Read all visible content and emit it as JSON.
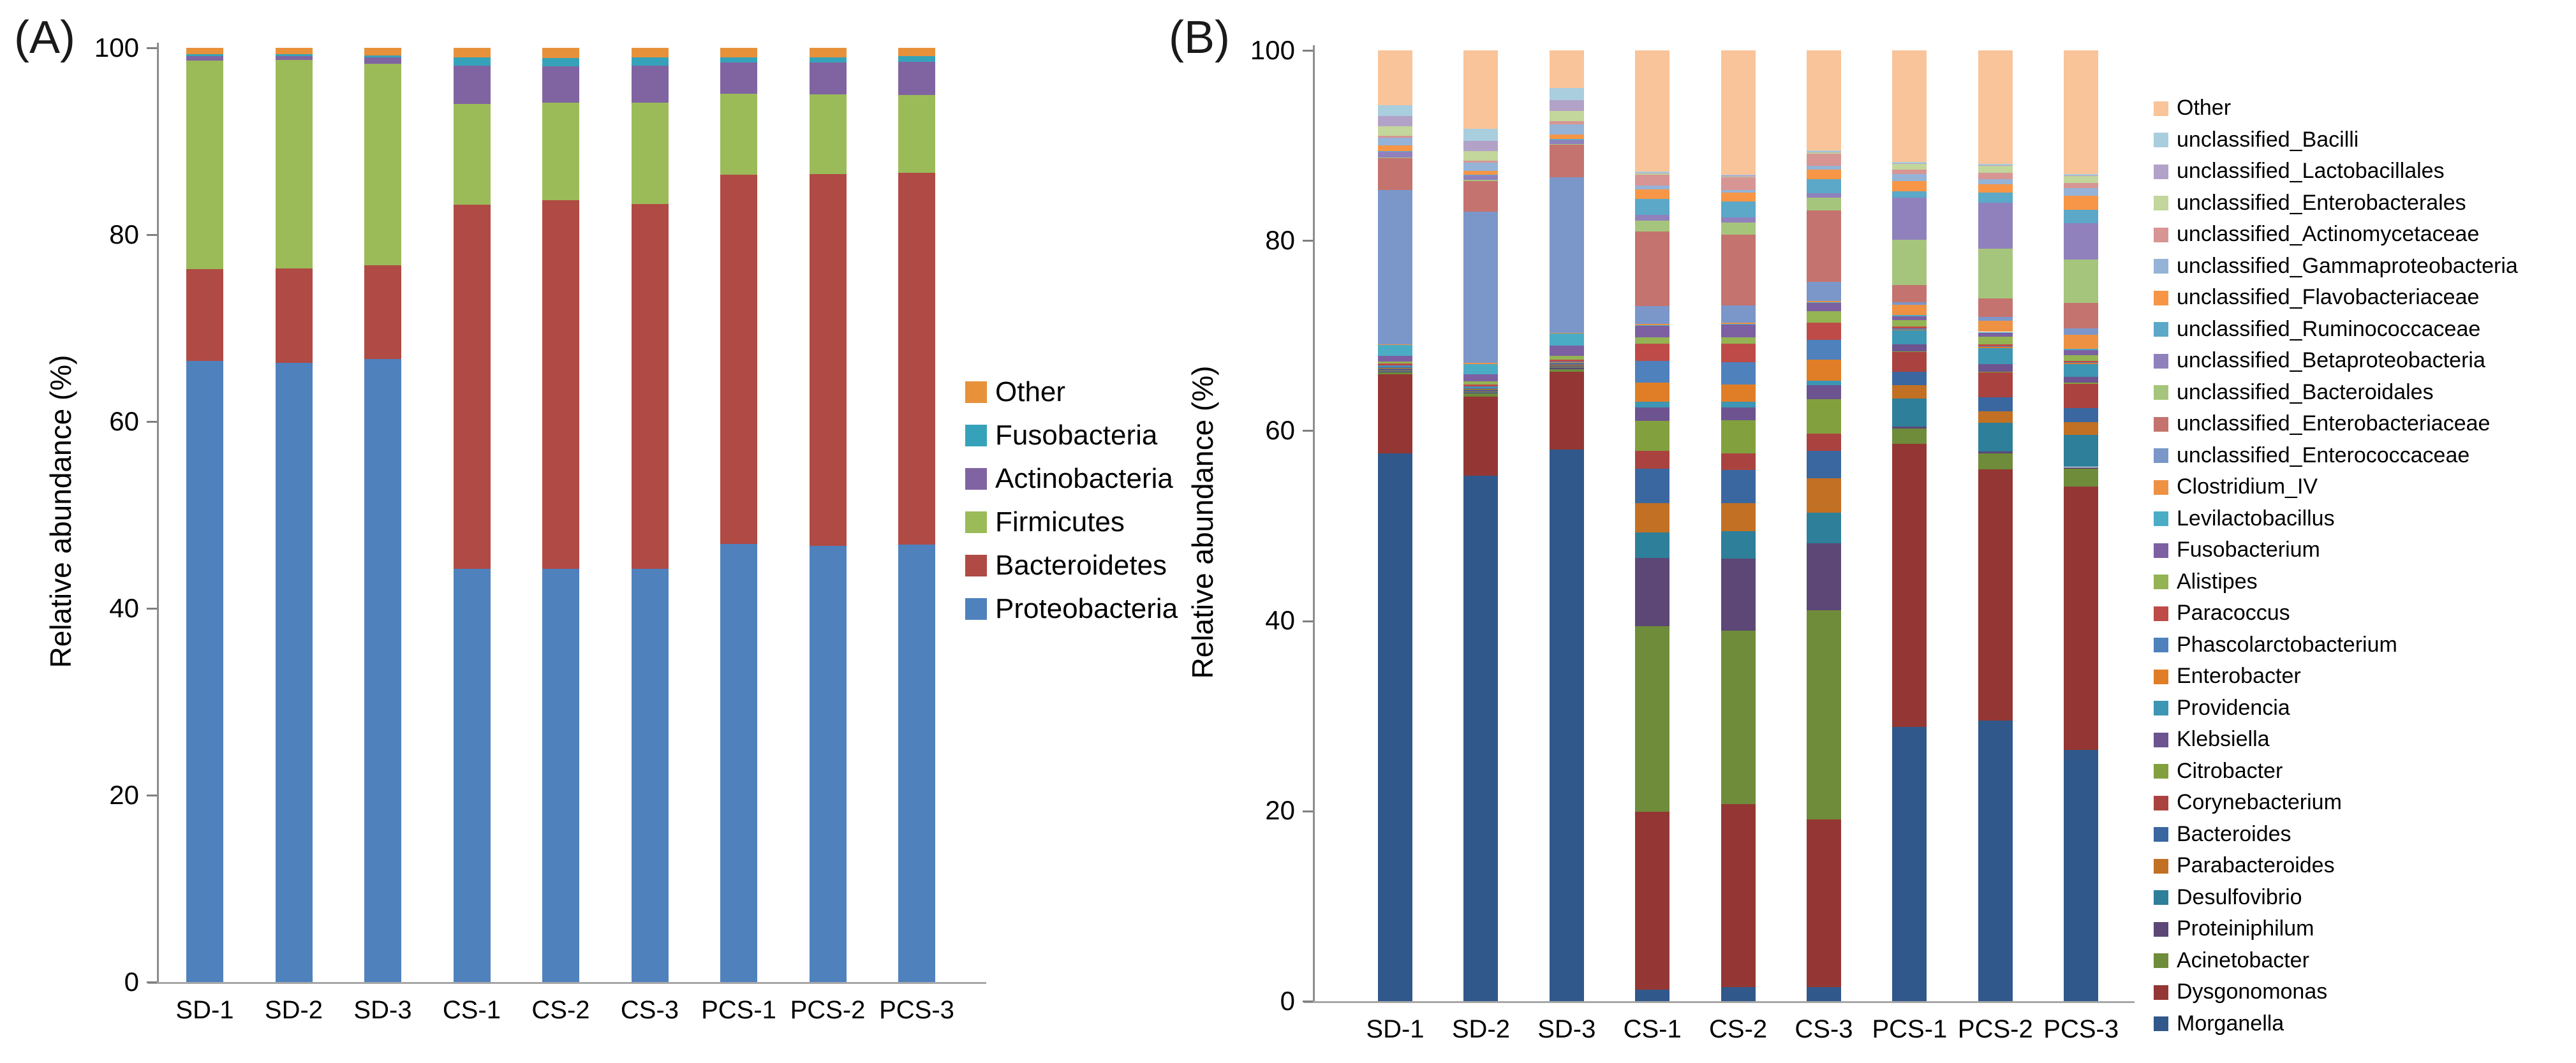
{
  "figure": {
    "panel_a_label": "(A)",
    "panel_b_label": "(B)",
    "y_axis_title": "Relative abundance (%)"
  },
  "chart_data": [
    {
      "type": "bar",
      "stacked": true,
      "panel_label": "(A)",
      "title": "",
      "xlabel": "",
      "ylabel": "Relative abundance (%)",
      "ylim": [
        0,
        100
      ],
      "yticks": [
        0,
        20,
        40,
        60,
        80,
        100
      ],
      "grid": false,
      "legend_position": "right",
      "legend_note": "legend lists top-of-stack series first",
      "categories": [
        "SD-1",
        "SD-2",
        "SD-3",
        "CS-1",
        "CS-2",
        "CS-3",
        "PCS-1",
        "PCS-2",
        "PCS-3"
      ],
      "series": [
        {
          "name": "Other",
          "color": "#E8913B",
          "values": [
            0.7,
            0.7,
            0.8,
            1.0,
            1.1,
            1.0,
            1.0,
            1.0,
            0.9
          ]
        },
        {
          "name": "Fusobacteria",
          "color": "#36A2BA",
          "values": [
            0.2,
            0.2,
            0.2,
            0.9,
            0.9,
            0.9,
            0.6,
            0.6,
            0.6
          ]
        },
        {
          "name": "Actinobacteria",
          "color": "#8064A2",
          "values": [
            0.5,
            0.4,
            0.7,
            4.1,
            3.9,
            4.0,
            3.3,
            3.4,
            3.6
          ]
        },
        {
          "name": "Firmicutes",
          "color": "#9BBB59",
          "values": [
            22.3,
            22.4,
            21.6,
            10.8,
            10.4,
            10.8,
            8.7,
            8.5,
            8.3
          ]
        },
        {
          "name": "Bacteroidetes",
          "color": "#B04A44",
          "values": [
            9.9,
            10.1,
            10.0,
            39.0,
            39.5,
            39.1,
            39.5,
            39.8,
            39.9
          ]
        },
        {
          "name": "Proteobacteria",
          "color": "#4F81BD",
          "values": [
            66.6,
            66.5,
            66.7,
            44.2,
            44.2,
            44.2,
            46.9,
            46.7,
            47.0
          ]
        }
      ]
    },
    {
      "type": "bar",
      "stacked": true,
      "panel_label": "(B)",
      "title": "",
      "xlabel": "",
      "ylabel": "Relative abundance (%)",
      "ylim": [
        0,
        100
      ],
      "yticks": [
        0,
        20,
        40,
        60,
        80,
        100
      ],
      "grid": false,
      "legend_position": "right",
      "legend_note": "legend lists top-of-stack series first",
      "categories": [
        "SD-1",
        "SD-2",
        "SD-3",
        "CS-1",
        "CS-2",
        "CS-3",
        "PCS-1",
        "PCS-2",
        "PCS-3"
      ],
      "series": [
        {
          "name": "Other",
          "color": "#F9C499",
          "values": [
            5.8,
            8.4,
            4.0,
            12.8,
            13.0,
            10.6,
            11.8,
            12.0,
            13.2
          ]
        },
        {
          "name": "unclassified_Bacilli",
          "color": "#A9CEDE",
          "values": [
            1.1,
            1.3,
            1.3,
            0.1,
            0.1,
            0.1,
            0.1,
            0.1,
            0.1
          ]
        },
        {
          "name": "unclassified_Lactobacillales",
          "color": "#B3A2C7",
          "values": [
            1.1,
            1.1,
            1.2,
            0.1,
            0.1,
            0.1,
            0.1,
            0.1,
            0.1
          ]
        },
        {
          "name": "unclassified_Enterobacterales",
          "color": "#C3D69B",
          "values": [
            1.0,
            1.0,
            1.1,
            0.1,
            0.1,
            0.1,
            0.6,
            0.7,
            0.7
          ]
        },
        {
          "name": "unclassified_Actinomycetaceae",
          "color": "#D79594",
          "values": [
            0.2,
            0.2,
            0.3,
            1.2,
            1.3,
            1.3,
            0.5,
            0.7,
            0.6
          ]
        },
        {
          "name": "unclassified_Gammaproteobacteria",
          "color": "#95B3D7",
          "values": [
            0.8,
            0.9,
            1.1,
            0.4,
            0.3,
            0.4,
            0.7,
            0.5,
            0.8
          ]
        },
        {
          "name": "unclassified_Flavobacteriaceae",
          "color": "#F79646",
          "values": [
            0.6,
            0.4,
            0.5,
            1.0,
            0.9,
            1.0,
            1.1,
            0.9,
            1.5
          ]
        },
        {
          "name": "unclassified_Ruminococcaceae",
          "color": "#5BA8C8",
          "values": [
            0.1,
            0.1,
            0.1,
            1.7,
            1.7,
            1.5,
            0.7,
            1.1,
            1.4
          ]
        },
        {
          "name": "unclassified_Betaproteobacteria",
          "color": "#9081BD",
          "values": [
            0.6,
            0.5,
            0.4,
            0.6,
            0.5,
            0.5,
            4.4,
            4.8,
            3.9
          ]
        },
        {
          "name": "unclassified_Bacteroidales",
          "color": "#A6C57C",
          "values": [
            0.1,
            0.1,
            0.1,
            1.1,
            1.3,
            1.3,
            4.8,
            5.3,
            4.6
          ]
        },
        {
          "name": "unclassified_Enterobacteriaceae",
          "color": "#C4736F",
          "values": [
            3.3,
            3.3,
            3.5,
            7.9,
            7.4,
            7.6,
            1.8,
            1.9,
            2.7
          ]
        },
        {
          "name": "unclassified_Enterococcaceae",
          "color": "#7B97C9",
          "values": [
            16.3,
            16.2,
            16.6,
            1.9,
            1.8,
            2.0,
            0.3,
            0.4,
            0.7
          ]
        },
        {
          "name": "Clostridium_IV",
          "color": "#EF9143",
          "values": [
            0.1,
            0.1,
            0.1,
            0.1,
            0.1,
            0.1,
            1.1,
            1.2,
            1.5
          ]
        },
        {
          "name": "Levilactobacillus",
          "color": "#4BACC6",
          "values": [
            1.1,
            1.1,
            1.3,
            0.1,
            0.1,
            0.1,
            0.1,
            0.1,
            0.1
          ]
        },
        {
          "name": "Fusobacterium",
          "color": "#7C60A2",
          "values": [
            0.6,
            0.8,
            1.1,
            1.2,
            1.3,
            0.9,
            0.4,
            0.4,
            0.6
          ]
        },
        {
          "name": "Alistipes",
          "color": "#94B353",
          "values": [
            0.2,
            0.3,
            0.4,
            0.7,
            0.7,
            1.2,
            0.7,
            0.8,
            0.6
          ]
        },
        {
          "name": "Paracoccus",
          "color": "#BE4B48",
          "values": [
            0.2,
            0.2,
            0.2,
            1.8,
            1.9,
            1.8,
            0.2,
            0.2,
            0.1
          ]
        },
        {
          "name": "Phascolarctobacterium",
          "color": "#4F81BD",
          "values": [
            0.05,
            0.05,
            0.05,
            2.3,
            2.4,
            2.1,
            0.1,
            0.1,
            0.1
          ]
        },
        {
          "name": "Enterobacter",
          "color": "#E07E27",
          "values": [
            0.05,
            0.05,
            0.05,
            2.0,
            1.8,
            2.2,
            0.1,
            0.1,
            0.1
          ]
        },
        {
          "name": "Providencia",
          "color": "#3D96B4",
          "values": [
            0.1,
            0.1,
            0.1,
            0.6,
            0.6,
            0.5,
            1.5,
            1.7,
            1.4
          ]
        },
        {
          "name": "Klebsiella",
          "color": "#6D538F",
          "values": [
            0.1,
            0.1,
            0.1,
            1.4,
            1.3,
            1.5,
            0.7,
            0.8,
            0.6
          ]
        },
        {
          "name": "Citrobacter",
          "color": "#82A13E",
          "values": [
            0.05,
            0.05,
            0.05,
            3.2,
            3.5,
            3.6,
            0.1,
            0.1,
            0.1
          ]
        },
        {
          "name": "Corynebacterium",
          "color": "#AA4340",
          "values": [
            0.1,
            0.1,
            0.1,
            1.9,
            1.7,
            1.8,
            2.1,
            2.6,
            2.6
          ]
        },
        {
          "name": "Bacteroides",
          "color": "#3A67A0",
          "values": [
            0.1,
            0.1,
            0.1,
            3.6,
            3.5,
            2.9,
            1.4,
            1.5,
            1.5
          ]
        },
        {
          "name": "Parabacteroides",
          "color": "#C27023",
          "values": [
            0.05,
            0.05,
            0.05,
            3.1,
            2.9,
            3.7,
            1.4,
            1.2,
            1.4
          ]
        },
        {
          "name": "Desulfovibrio",
          "color": "#2E7F99",
          "values": [
            0.1,
            0.1,
            0.1,
            2.7,
            2.9,
            3.2,
            3.0,
            3.0,
            3.4
          ]
        },
        {
          "name": "Proteiniphilum",
          "color": "#5C4776",
          "values": [
            0.1,
            0.1,
            0.1,
            7.2,
            7.5,
            7.1,
            0.2,
            0.2,
            0.2
          ]
        },
        {
          "name": "Acinetobacter",
          "color": "#6E8C3A",
          "values": [
            0.2,
            0.3,
            0.3,
            19.6,
            18.2,
            22.1,
            1.6,
            1.7,
            1.9
          ]
        },
        {
          "name": "Dysgonomonas",
          "color": "#943734",
          "values": [
            8.3,
            8.5,
            8.3,
            18.8,
            19.1,
            17.7,
            29.9,
            26.5,
            28.0
          ]
        },
        {
          "name": "Morganella",
          "color": "#31588A",
          "values": [
            57.8,
            56.3,
            59.0,
            1.2,
            1.5,
            1.5,
            29.0,
            29.6,
            26.8
          ]
        }
      ]
    }
  ]
}
